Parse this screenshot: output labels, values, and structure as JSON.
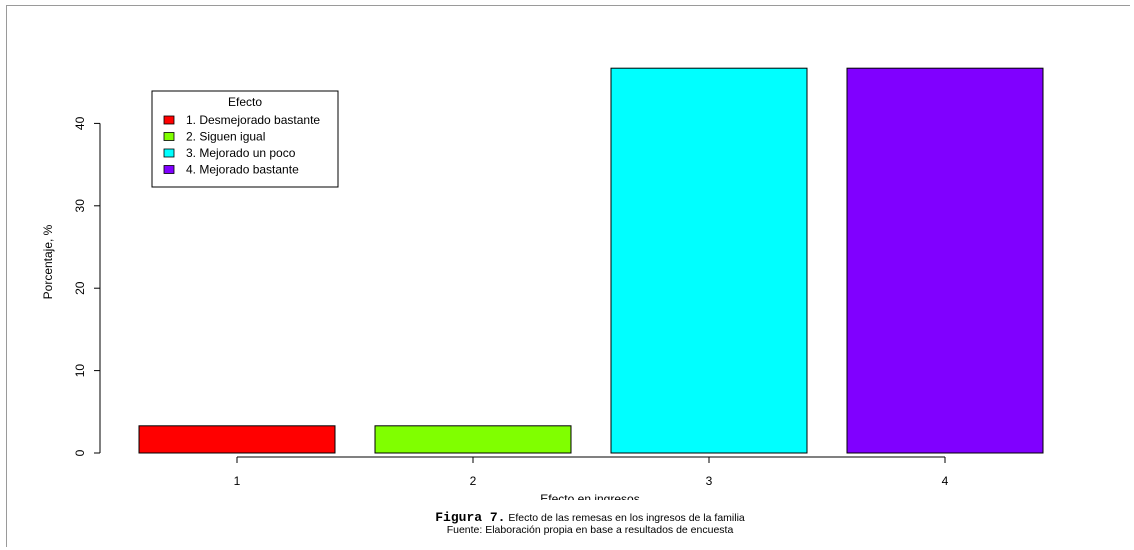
{
  "chart_data": {
    "type": "bar",
    "categories": [
      "1",
      "2",
      "3",
      "4"
    ],
    "values": [
      3.3,
      3.3,
      46.7,
      46.7
    ],
    "colors": [
      "#ff0000",
      "#80ff00",
      "#00ffff",
      "#8000ff"
    ],
    "ylabel": "Porcentaje, %",
    "xlabel": "Efecto en ingresos",
    "ylim": [
      0,
      50
    ],
    "yticks": [
      0,
      10,
      20,
      30,
      40
    ],
    "grid": false,
    "legend": {
      "title": "Efecto",
      "position": "top-left",
      "entries": [
        "1. Desmejorado bastante",
        "2. Siguen igual",
        "3. Mejorado un poco",
        "4. Mejorado bastante"
      ]
    }
  },
  "caption": {
    "figure_label": "Figura 7.",
    "figure_text": "Efecto de las remesas en los ingresos de la familia",
    "source": "Fuente: Elaboración propia en base a resultados de encuesta"
  }
}
